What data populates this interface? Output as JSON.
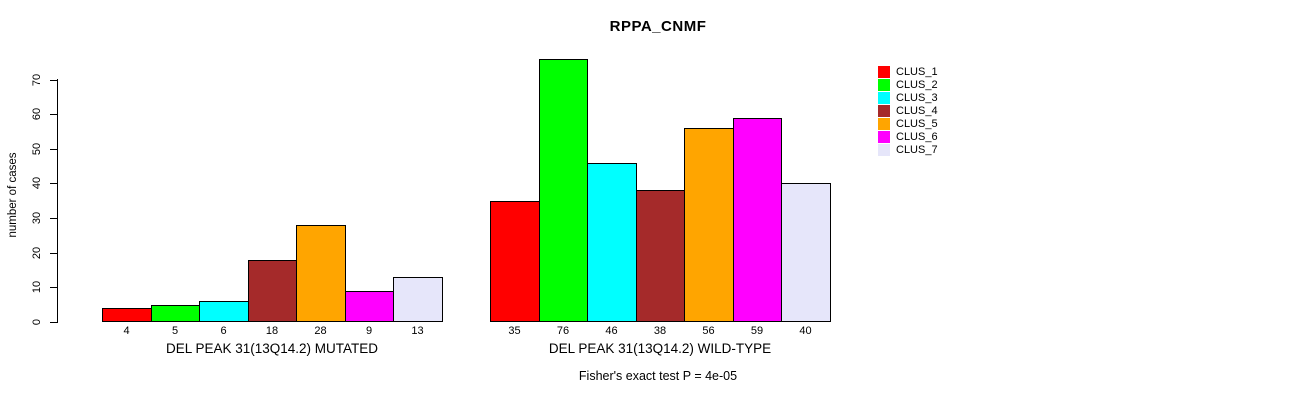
{
  "chart_data": {
    "type": "bar",
    "title": "RPPA_CNMF",
    "ylabel": "number of cases",
    "footnote": "Fisher's exact test P = 4e-05",
    "ylim": [
      0,
      76
    ],
    "yticks": [
      0,
      10,
      20,
      30,
      40,
      50,
      60,
      70
    ],
    "grid": false,
    "legend_position": "topright",
    "bar_value_labels": true,
    "categories": [
      "DEL PEAK 31(13Q14.2) MUTATED",
      "DEL PEAK 31(13Q14.2) WILD-TYPE"
    ],
    "series": [
      {
        "name": "CLUS_1",
        "color": "#FF0000",
        "values": [
          4,
          35
        ]
      },
      {
        "name": "CLUS_2",
        "color": "#00FF00",
        "values": [
          5,
          76
        ]
      },
      {
        "name": "CLUS_3",
        "color": "#00FFFF",
        "values": [
          6,
          46
        ]
      },
      {
        "name": "CLUS_4",
        "color": "#A52A2A",
        "values": [
          18,
          38
        ]
      },
      {
        "name": "CLUS_5",
        "color": "#FFA500",
        "values": [
          28,
          56
        ]
      },
      {
        "name": "CLUS_6",
        "color": "#FF00FF",
        "values": [
          9,
          59
        ]
      },
      {
        "name": "CLUS_7",
        "color": "#E6E6FA",
        "values": [
          13,
          40
        ]
      }
    ]
  }
}
